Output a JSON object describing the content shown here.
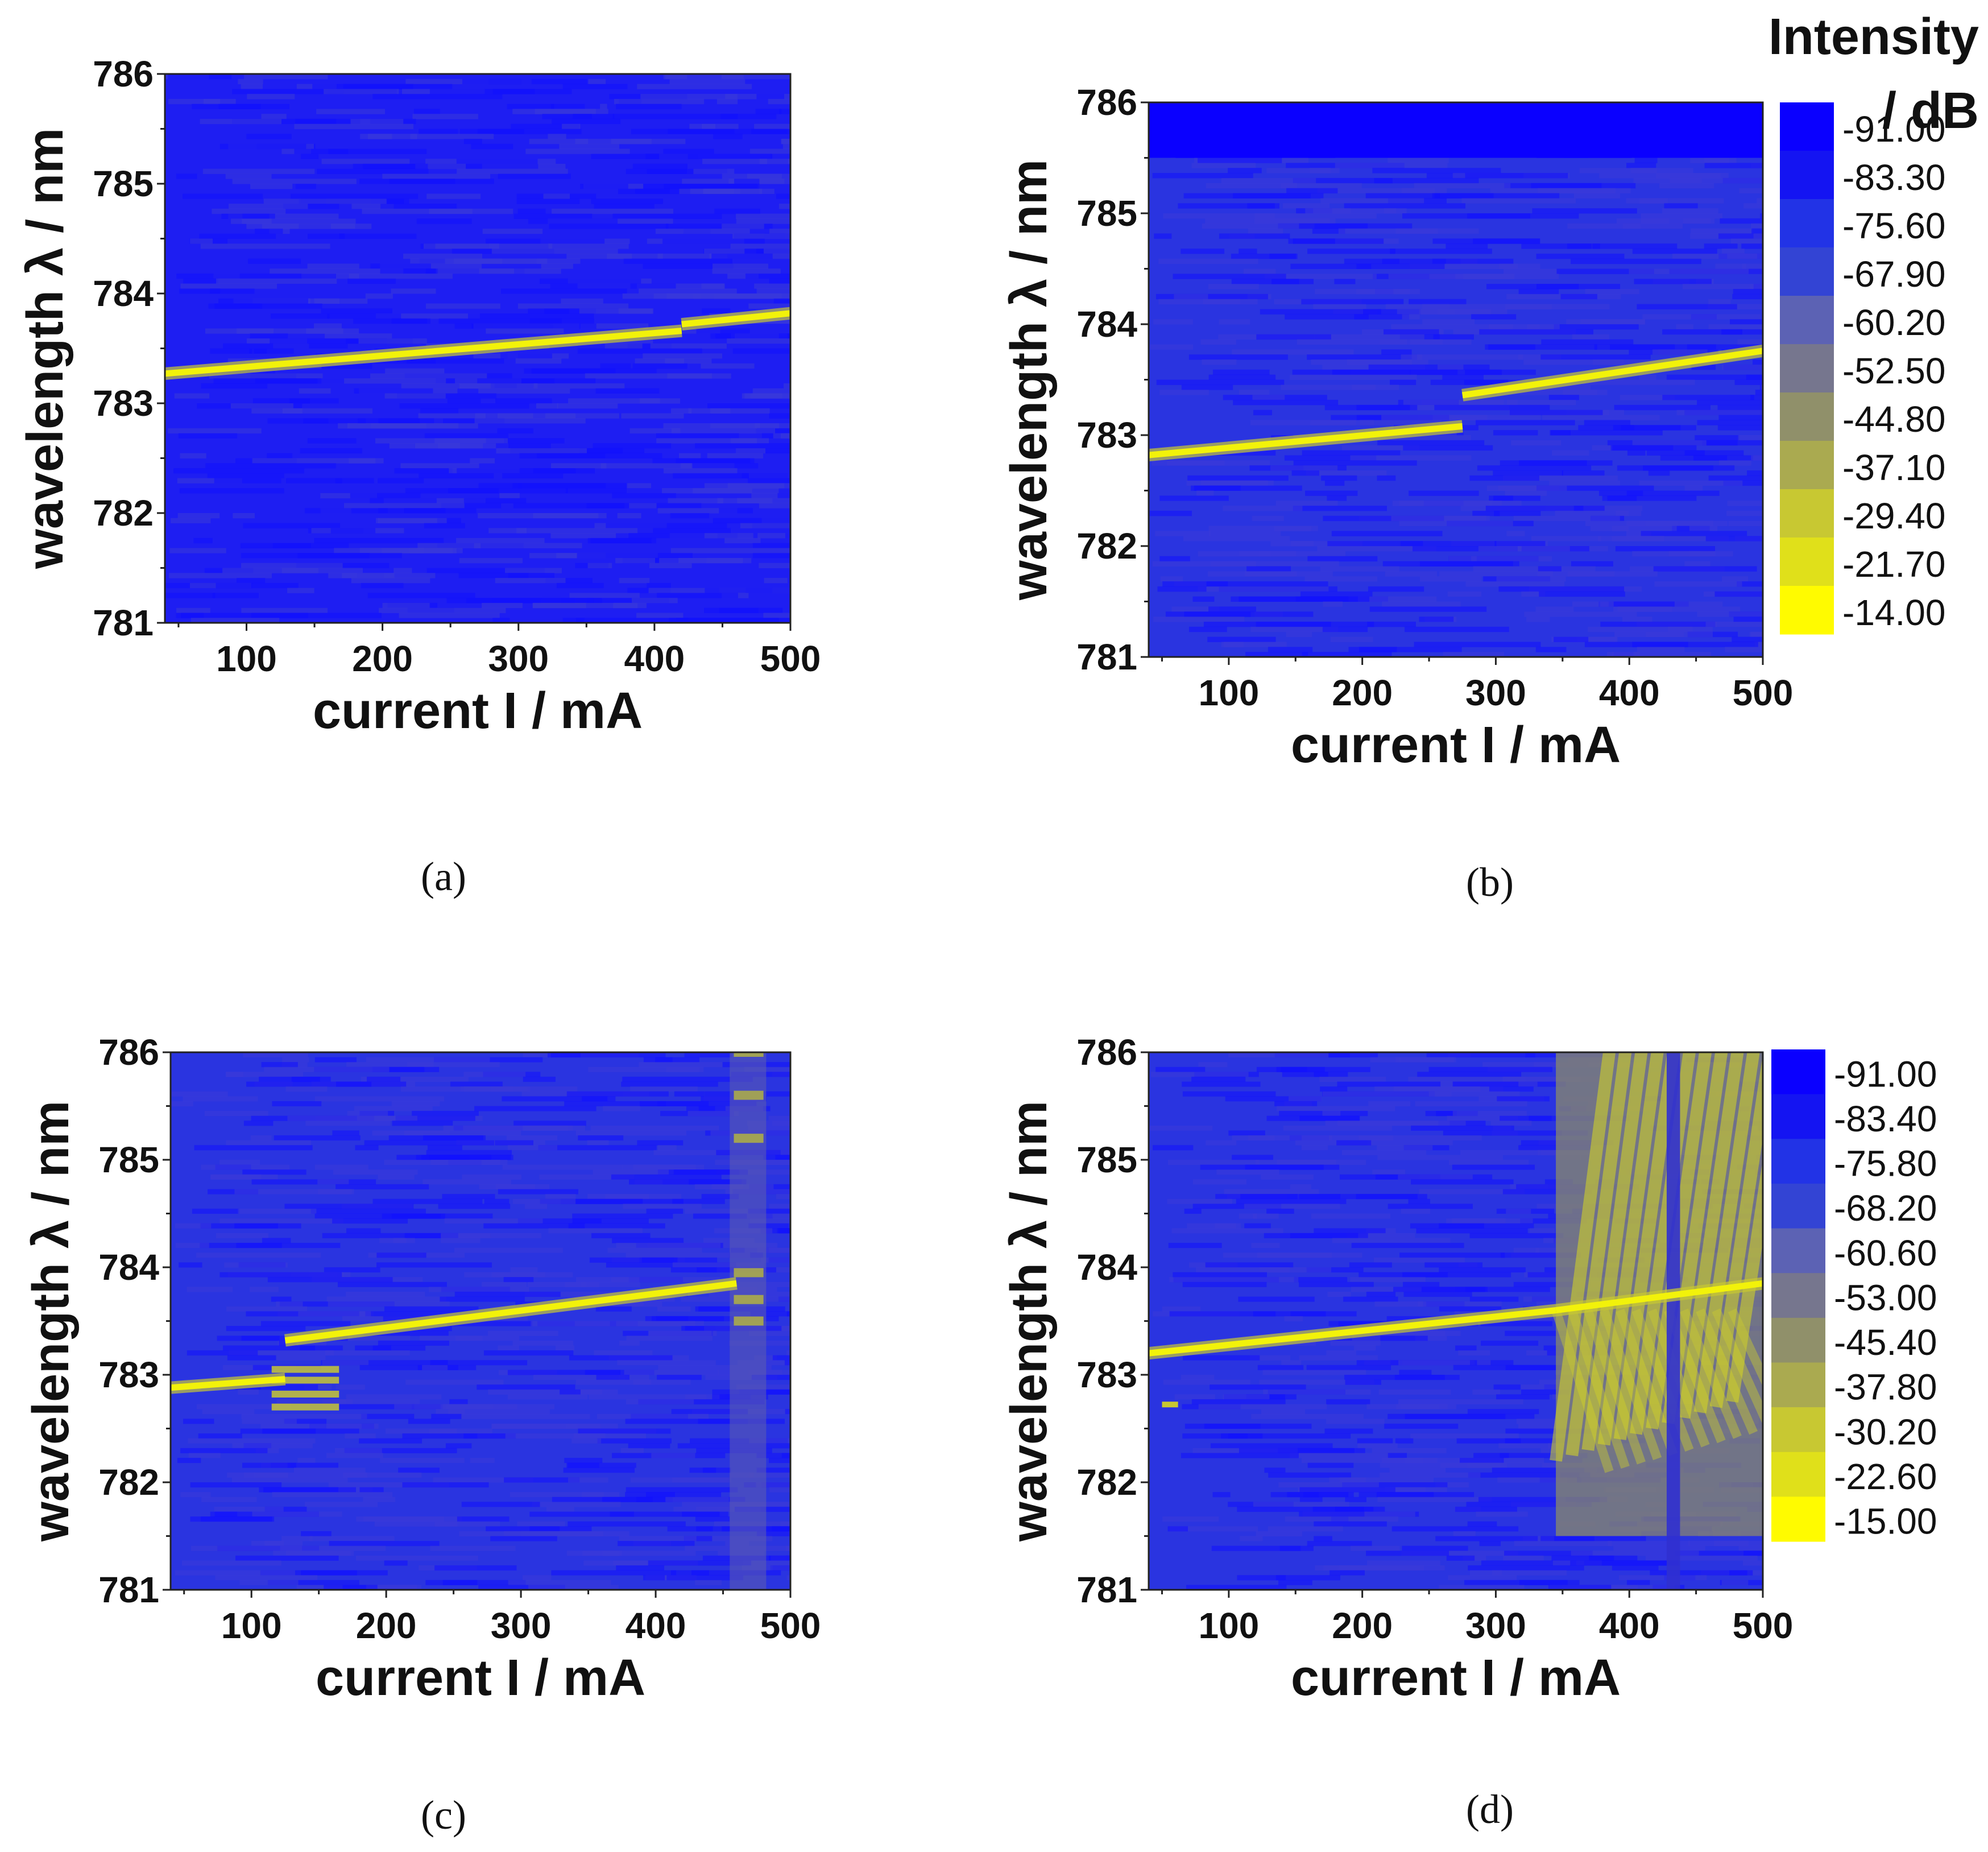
{
  "chart_data": [
    {
      "type": "heatmap",
      "panel": "(a)",
      "xlabel": "current I / mA",
      "ylabel": "wavelength λ / nm",
      "xlim": [
        40,
        500
      ],
      "ylim": [
        781,
        786
      ],
      "xticks": [
        100,
        200,
        300,
        400,
        500
      ],
      "yticks": [
        781,
        782,
        783,
        784,
        785,
        786
      ],
      "modes": [
        {
          "segments": [
            [
              40,
              783.27,
              420,
              783.66
            ],
            [
              420,
              783.72,
              500,
              783.82
            ]
          ]
        }
      ],
      "note": "single lasing mode; mode hop near 420 mA"
    },
    {
      "type": "heatmap",
      "panel": "(b)",
      "xlabel": "current I / mA",
      "ylabel": "wavelength λ / nm",
      "xlim": [
        40,
        500
      ],
      "ylim": [
        781,
        786
      ],
      "xticks": [
        100,
        200,
        300,
        400,
        500
      ],
      "yticks": [
        781,
        782,
        783,
        784,
        785,
        786
      ],
      "modes": [
        {
          "segments": [
            [
              40,
              782.82,
              275,
              783.08
            ],
            [
              275,
              783.36,
              500,
              783.76
            ]
          ]
        }
      ],
      "note": "mode hop near 275 mA"
    },
    {
      "type": "heatmap",
      "panel": "(c)",
      "xlabel": "current I / mA",
      "ylabel": "wavelength λ / nm",
      "xlim": [
        40,
        500
      ],
      "ylim": [
        781,
        786
      ],
      "xticks": [
        100,
        200,
        300,
        400,
        500
      ],
      "yticks": [
        781,
        782,
        783,
        784,
        785,
        786
      ],
      "modes": [
        {
          "segments": [
            [
              40,
              782.88,
              125,
              782.96
            ],
            [
              125,
              783.32,
              460,
              783.85
            ]
          ]
        }
      ],
      "note": "multimode region 115–165 mA; broadband region 455–480 mA"
    },
    {
      "type": "heatmap",
      "panel": "(d)",
      "xlabel": "current I / mA",
      "ylabel": "wavelength λ / nm",
      "xlim": [
        40,
        500
      ],
      "ylim": [
        781,
        786
      ],
      "xticks": [
        100,
        200,
        300,
        400,
        500
      ],
      "yticks": [
        781,
        782,
        783,
        784,
        785,
        786
      ],
      "modes": [
        {
          "segments": [
            [
              40,
              783.2,
              345,
              783.6
            ],
            [
              345,
              783.6,
              500,
              783.85
            ]
          ]
        }
      ],
      "note": "broadband multimode emission above ~345 mA"
    }
  ],
  "colorbars": [
    {
      "title_line1": "Intensity",
      "title_line2": "/ dB",
      "labels": [
        "-91.00",
        "-83.30",
        "-75.60",
        "-67.90",
        "-60.20",
        "-52.50",
        "-44.80",
        "-37.10",
        "-29.40",
        "-21.70",
        "-14.00"
      ],
      "colors": [
        "#0a00ff",
        "#1414f2",
        "#2233e6",
        "#3344d4",
        "#5c62b4",
        "#76768e",
        "#90906a",
        "#aaaa50",
        "#c8c832",
        "#e0e01a",
        "#fffb00"
      ]
    },
    {
      "labels": [
        "-91.00",
        "-83.40",
        "-75.80",
        "-68.20",
        "-60.60",
        "-53.00",
        "-45.40",
        "-37.80",
        "-30.20",
        "-22.60",
        "-15.00"
      ],
      "colors": [
        "#0a00ff",
        "#1414f2",
        "#2233e6",
        "#3344d4",
        "#5c62b4",
        "#76768e",
        "#90906a",
        "#aaaa50",
        "#c8c832",
        "#e0e01a",
        "#fffb00"
      ]
    }
  ],
  "captions": [
    "(a)",
    "(b)",
    "(c)",
    "(d)"
  ],
  "colors": {
    "background_blue": "#1f1ff0",
    "noise_blue": "#3535e0",
    "mode_yellow": "#f2f20a"
  }
}
